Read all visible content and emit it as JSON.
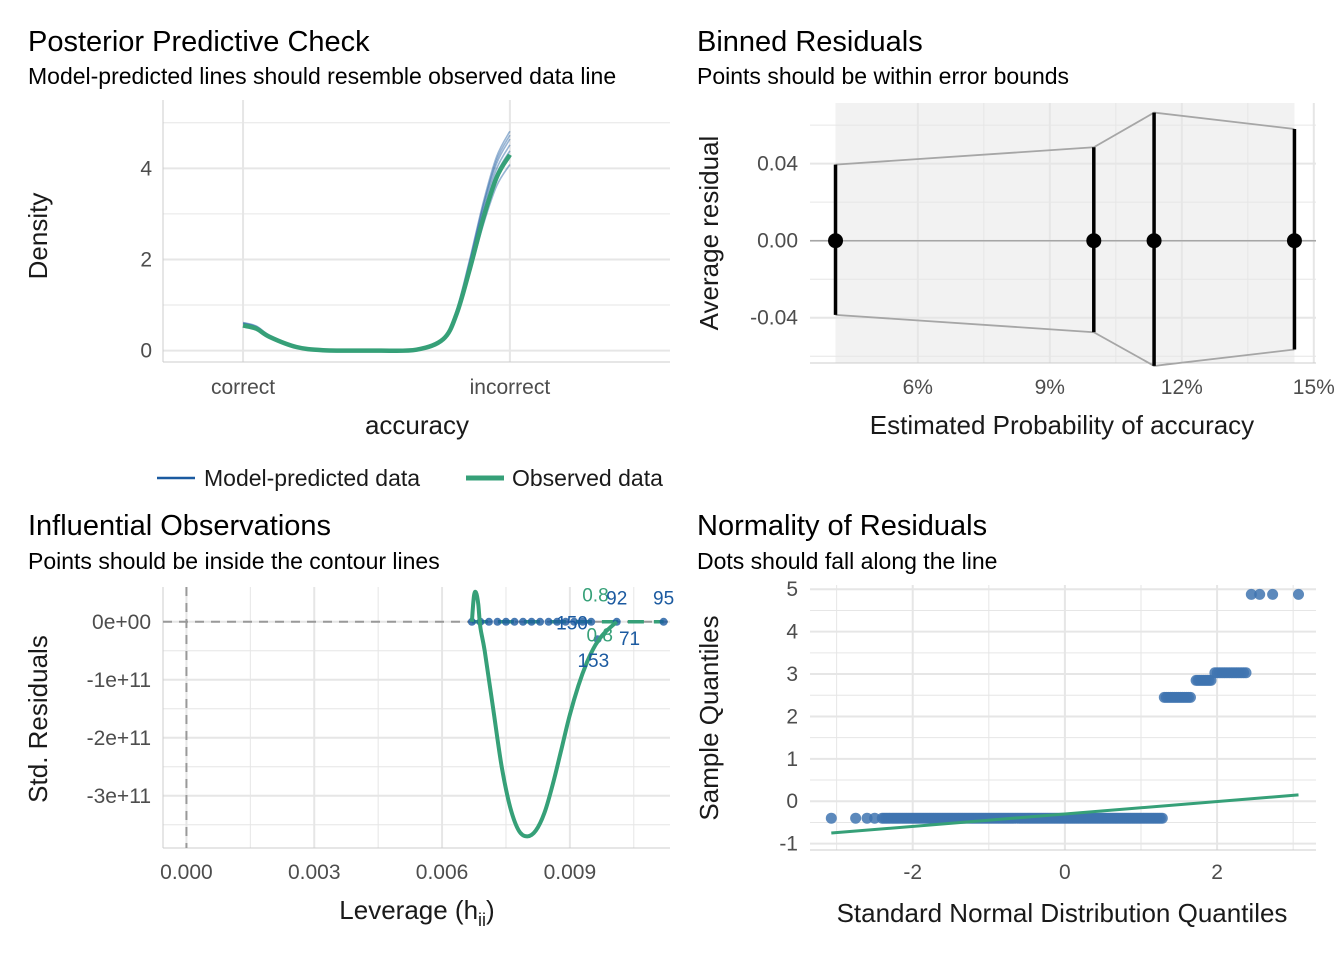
{
  "colors": {
    "predicted": "#1b5aa0",
    "observed": "#36a078",
    "grid": "#e6e6e6",
    "ref": "#a6a6a6",
    "band": "#f2f2f2",
    "point": "#000000",
    "qq_point": "#3f74b0"
  },
  "chart_data": [
    {
      "id": "ppc",
      "type": "line",
      "title": "Posterior Predictive Check",
      "subtitle": "Model-predicted lines should resemble observed data line",
      "xlabel": "accuracy",
      "ylabel": "Density",
      "xtick_labels": [
        "correct",
        "incorrect"
      ],
      "ytick_labels": [
        "0",
        "2",
        "4"
      ],
      "ylim": [
        -0.25,
        5.5
      ],
      "x_range": [
        0.7,
        2.6
      ],
      "grid": true,
      "legend": {
        "position": "bottom",
        "entries": [
          "Model-predicted data",
          "Observed data"
        ]
      },
      "series": [
        {
          "name": "Model-predicted data",
          "x": [
            1.0,
            1.1,
            1.25,
            1.5,
            1.75,
            1.85,
            1.9,
            1.95,
            2.0
          ],
          "y_scale": [
            0.95,
            1.02,
            1.05,
            1.08,
            1.1,
            1.12
          ]
        },
        {
          "name": "Observed data",
          "x": [
            1.0,
            1.05,
            1.1,
            1.2,
            1.3,
            1.5,
            1.65,
            1.75,
            1.8,
            1.85,
            1.9,
            1.95,
            2.0
          ],
          "y": [
            0.55,
            0.48,
            0.3,
            0.08,
            0.01,
            0.0,
            0.02,
            0.25,
            0.8,
            1.8,
            2.9,
            3.8,
            4.3
          ]
        }
      ]
    },
    {
      "id": "binned",
      "type": "scatter",
      "title": "Binned Residuals",
      "subtitle": "Points should be within error bounds",
      "xlabel": "Estimated Probability of accuracy",
      "ylabel": "Average residual",
      "xtick_labels": [
        "6%",
        "9%",
        "12%",
        "15%"
      ],
      "xticks": [
        0.06,
        0.09,
        0.12,
        0.15
      ],
      "ytick_labels": [
        "0.04",
        "0.00",
        "-0.04"
      ],
      "yticks": [
        0.04,
        0.0,
        -0.04
      ],
      "xlim": [
        0.0355,
        0.1505
      ],
      "ylim": [
        -0.0635,
        0.0715
      ],
      "grid": true,
      "points": [
        {
          "x": 0.0413,
          "y": 0.0,
          "lo": -0.0385,
          "hi": 0.0395
        },
        {
          "x": 0.1,
          "y": 0.0,
          "lo": -0.0475,
          "hi": 0.0485
        },
        {
          "x": 0.1137,
          "y": 0.0,
          "lo": -0.065,
          "hi": 0.0665
        },
        {
          "x": 0.1456,
          "y": 0.0,
          "lo": -0.0565,
          "hi": 0.058
        }
      ]
    },
    {
      "id": "influence",
      "type": "line",
      "title": "Influential Observations",
      "subtitle": "Points should be inside the contour lines",
      "xlabel": "Leverage (h",
      "xlabel_sub": "ii",
      "xlabel_suffix": ")",
      "ylabel": "Std. Residuals",
      "xtick_labels": [
        "0.000",
        "0.003",
        "0.006",
        "0.009"
      ],
      "xticks": [
        0.0,
        0.003,
        0.006,
        0.009
      ],
      "ytick_labels": [
        "0e+00",
        "-1e+11",
        "-2e+11",
        "-3e+11"
      ],
      "yticks": [
        0,
        -100000000000.0,
        -200000000000.0,
        -300000000000.0
      ],
      "xlim": [
        -0.00055,
        0.01135
      ],
      "ylim": [
        -390000000000.0,
        60000000000.0
      ],
      "grid": true,
      "points": [
        {
          "x": 0.0067,
          "y": 0
        },
        {
          "x": 0.0069,
          "y": 0
        },
        {
          "x": 0.0071,
          "y": 0
        },
        {
          "x": 0.0073,
          "y": 0
        },
        {
          "x": 0.0075,
          "y": 0
        },
        {
          "x": 0.0077,
          "y": 0
        },
        {
          "x": 0.0079,
          "y": 0
        },
        {
          "x": 0.0081,
          "y": 0
        },
        {
          "x": 0.0083,
          "y": 0
        },
        {
          "x": 0.0085,
          "y": 0
        },
        {
          "x": 0.0087,
          "y": 0
        },
        {
          "x": 0.0089,
          "y": 0
        },
        {
          "x": 0.0091,
          "y": 0
        },
        {
          "x": 0.0093,
          "y": 0
        },
        {
          "x": 0.0095,
          "y": 0
        },
        {
          "x": 0.00965,
          "y": -30000000000.0
        },
        {
          "x": 0.0101,
          "y": 0
        },
        {
          "x": 0.0112,
          "y": 0
        }
      ],
      "smooth_x": [
        0.0067,
        0.00675,
        0.0068,
        0.00685,
        0.0069,
        0.007,
        0.0072,
        0.0074,
        0.0076,
        0.0078,
        0.008,
        0.0082,
        0.0084,
        0.0086,
        0.0088,
        0.009,
        0.0092,
        0.0094,
        0.0096,
        0.0098,
        0.0101
      ],
      "smooth_y": [
        0,
        45000000000.0,
        50000000000.0,
        30000000000.0,
        -10000000000.0,
        -50000000000.0,
        -150000000000.0,
        -250000000000.0,
        -320000000000.0,
        -360000000000.0,
        -370000000000.0,
        -360000000000.0,
        -330000000000.0,
        -280000000000.0,
        -220000000000.0,
        -160000000000.0,
        -110000000000.0,
        -70000000000.0,
        -40000000000.0,
        -20000000000.0,
        0
      ],
      "contour_dashed_x": [
        0.0067,
        0.0112
      ],
      "contour_labels": [
        {
          "text": "0.8",
          "x": 0.0096,
          "y": 35000000000.0,
          "series": "contour"
        },
        {
          "text": "0.8",
          "x": 0.0097,
          "y": -34000000000.0,
          "series": "contour"
        },
        {
          "text": "92",
          "x": 0.0101,
          "y": 30000000000.0,
          "series": "case"
        },
        {
          "text": "95",
          "x": 0.0112,
          "y": 30000000000.0,
          "series": "case"
        },
        {
          "text": "150",
          "x": 0.00905,
          "y": -13000000000.0,
          "series": "case"
        },
        {
          "text": "71",
          "x": 0.0104,
          "y": -40000000000.0,
          "series": "case"
        },
        {
          "text": "153",
          "x": 0.00955,
          "y": -78000000000.0,
          "series": "case"
        }
      ]
    },
    {
      "id": "qq",
      "type": "scatter",
      "title": "Normality of Residuals",
      "subtitle": "Dots should fall along the line",
      "xlabel": "Standard Normal Distribution Quantiles",
      "ylabel": "Sample Quantiles",
      "xtick_labels": [
        "-2",
        "0",
        "2"
      ],
      "xticks": [
        -2,
        0,
        2
      ],
      "ytick_labels": [
        "5",
        "4",
        "3",
        "2",
        "1",
        "0",
        "-1"
      ],
      "yticks": [
        5,
        4,
        3,
        2,
        1,
        0,
        -1
      ],
      "xlim": [
        -3.35,
        3.3
      ],
      "ylim": [
        -1.15,
        5.1
      ],
      "grid": true,
      "clusters": [
        {
          "x_from": -3.07,
          "x_to": 1.28,
          "y": -0.4,
          "n": 150,
          "x_pts": [
            -3.07,
            -2.75,
            -2.6,
            -2.5,
            -2.4
          ]
        },
        {
          "x_from": 1.28,
          "x_to": 1.65,
          "y": 2.45,
          "n": 14
        },
        {
          "x_from": 1.7,
          "x_to": 1.92,
          "y": 2.85,
          "n": 9
        },
        {
          "x_from": 1.94,
          "x_to": 2.38,
          "y": 3.03,
          "n": 14
        },
        {
          "x_from": 2.45,
          "x_to": 2.73,
          "y": 4.88,
          "n": 3,
          "x_pts": [
            2.45,
            2.56,
            2.73
          ]
        },
        {
          "x_from": 3.07,
          "x_to": 3.07,
          "y": 4.88,
          "n": 1,
          "x_pts": [
            3.07
          ]
        }
      ],
      "reference_line": {
        "x": [
          -3.07,
          3.07
        ],
        "y": [
          -0.75,
          0.15
        ]
      }
    }
  ]
}
